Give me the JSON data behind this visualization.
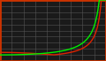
{
  "title": "",
  "background_color": "#1a1a1a",
  "border_color": "#cc3300",
  "grid_color": "#555555",
  "lambert_color": "#00ee00",
  "gall_color": "#dd2200",
  "x_min": 0,
  "x_max": 90,
  "y_min": 0,
  "y_max": 10,
  "figsize": [
    1.2,
    0.69
  ],
  "dpi": 100,
  "line_width": 1.0
}
